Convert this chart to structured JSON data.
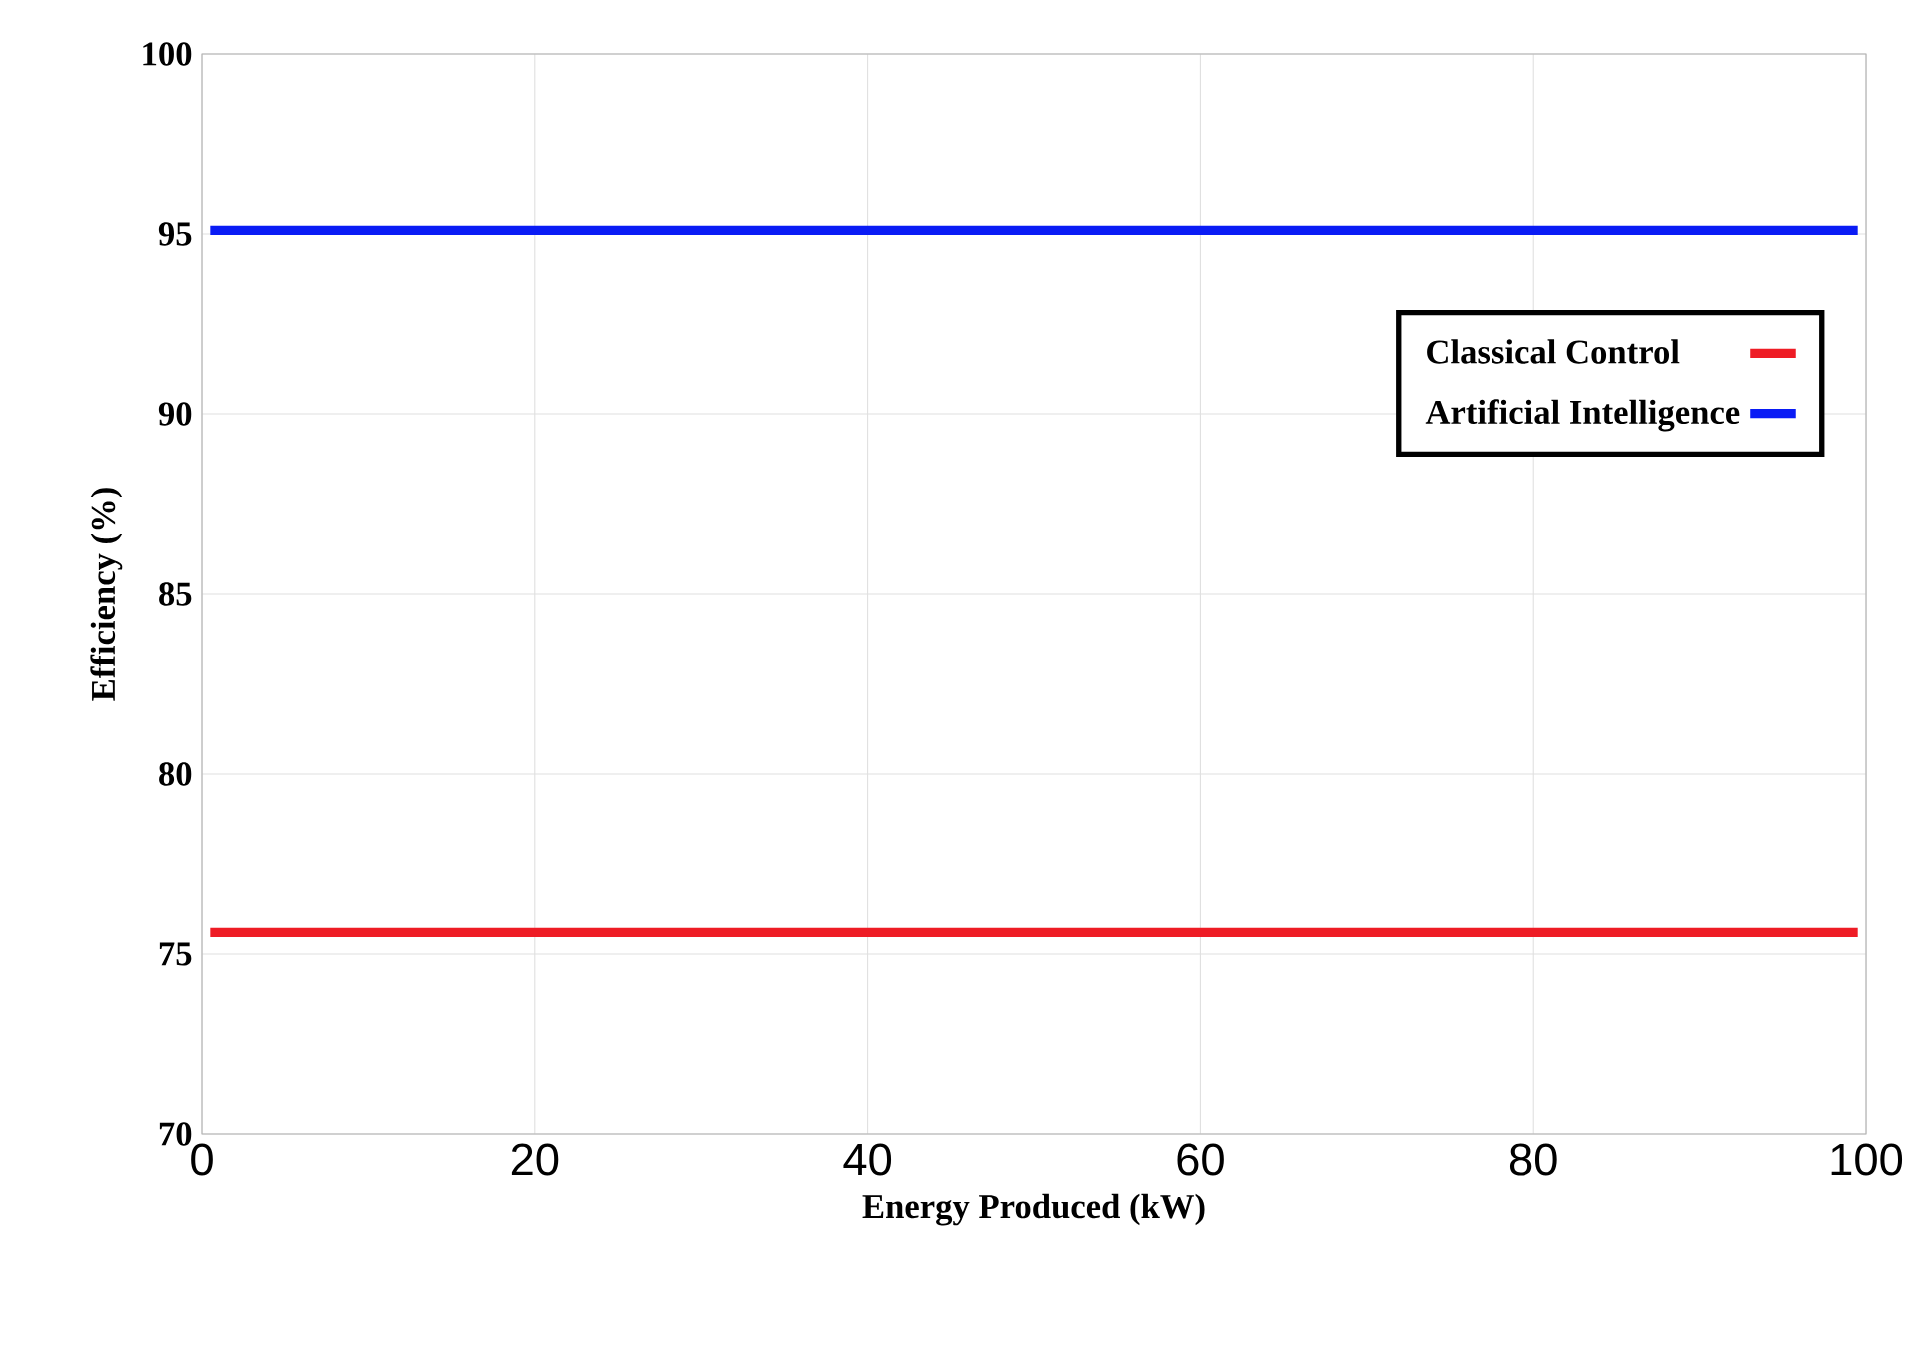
{
  "chart_data": {
    "type": "line",
    "xlabel": "Energy Produced (kW)",
    "ylabel": "Efficiency (%)",
    "x": [
      0.5,
      99.5
    ],
    "series": [
      {
        "name": "Classical Control",
        "color": "#ee1c25",
        "values": [
          75.6,
          75.6
        ]
      },
      {
        "name": "Artificial Intelligence",
        "color": "#0a1cf5",
        "values": [
          95.1,
          95.1
        ]
      }
    ],
    "xlim": [
      0,
      100
    ],
    "xticks": [
      0,
      20,
      40,
      60,
      80,
      100
    ],
    "ylim": [
      70,
      100
    ],
    "yticks": [
      70,
      75,
      80,
      85,
      90,
      95,
      100
    ],
    "grid": true,
    "legend": "top right",
    "marker": "none",
    "line_style": "solid"
  }
}
